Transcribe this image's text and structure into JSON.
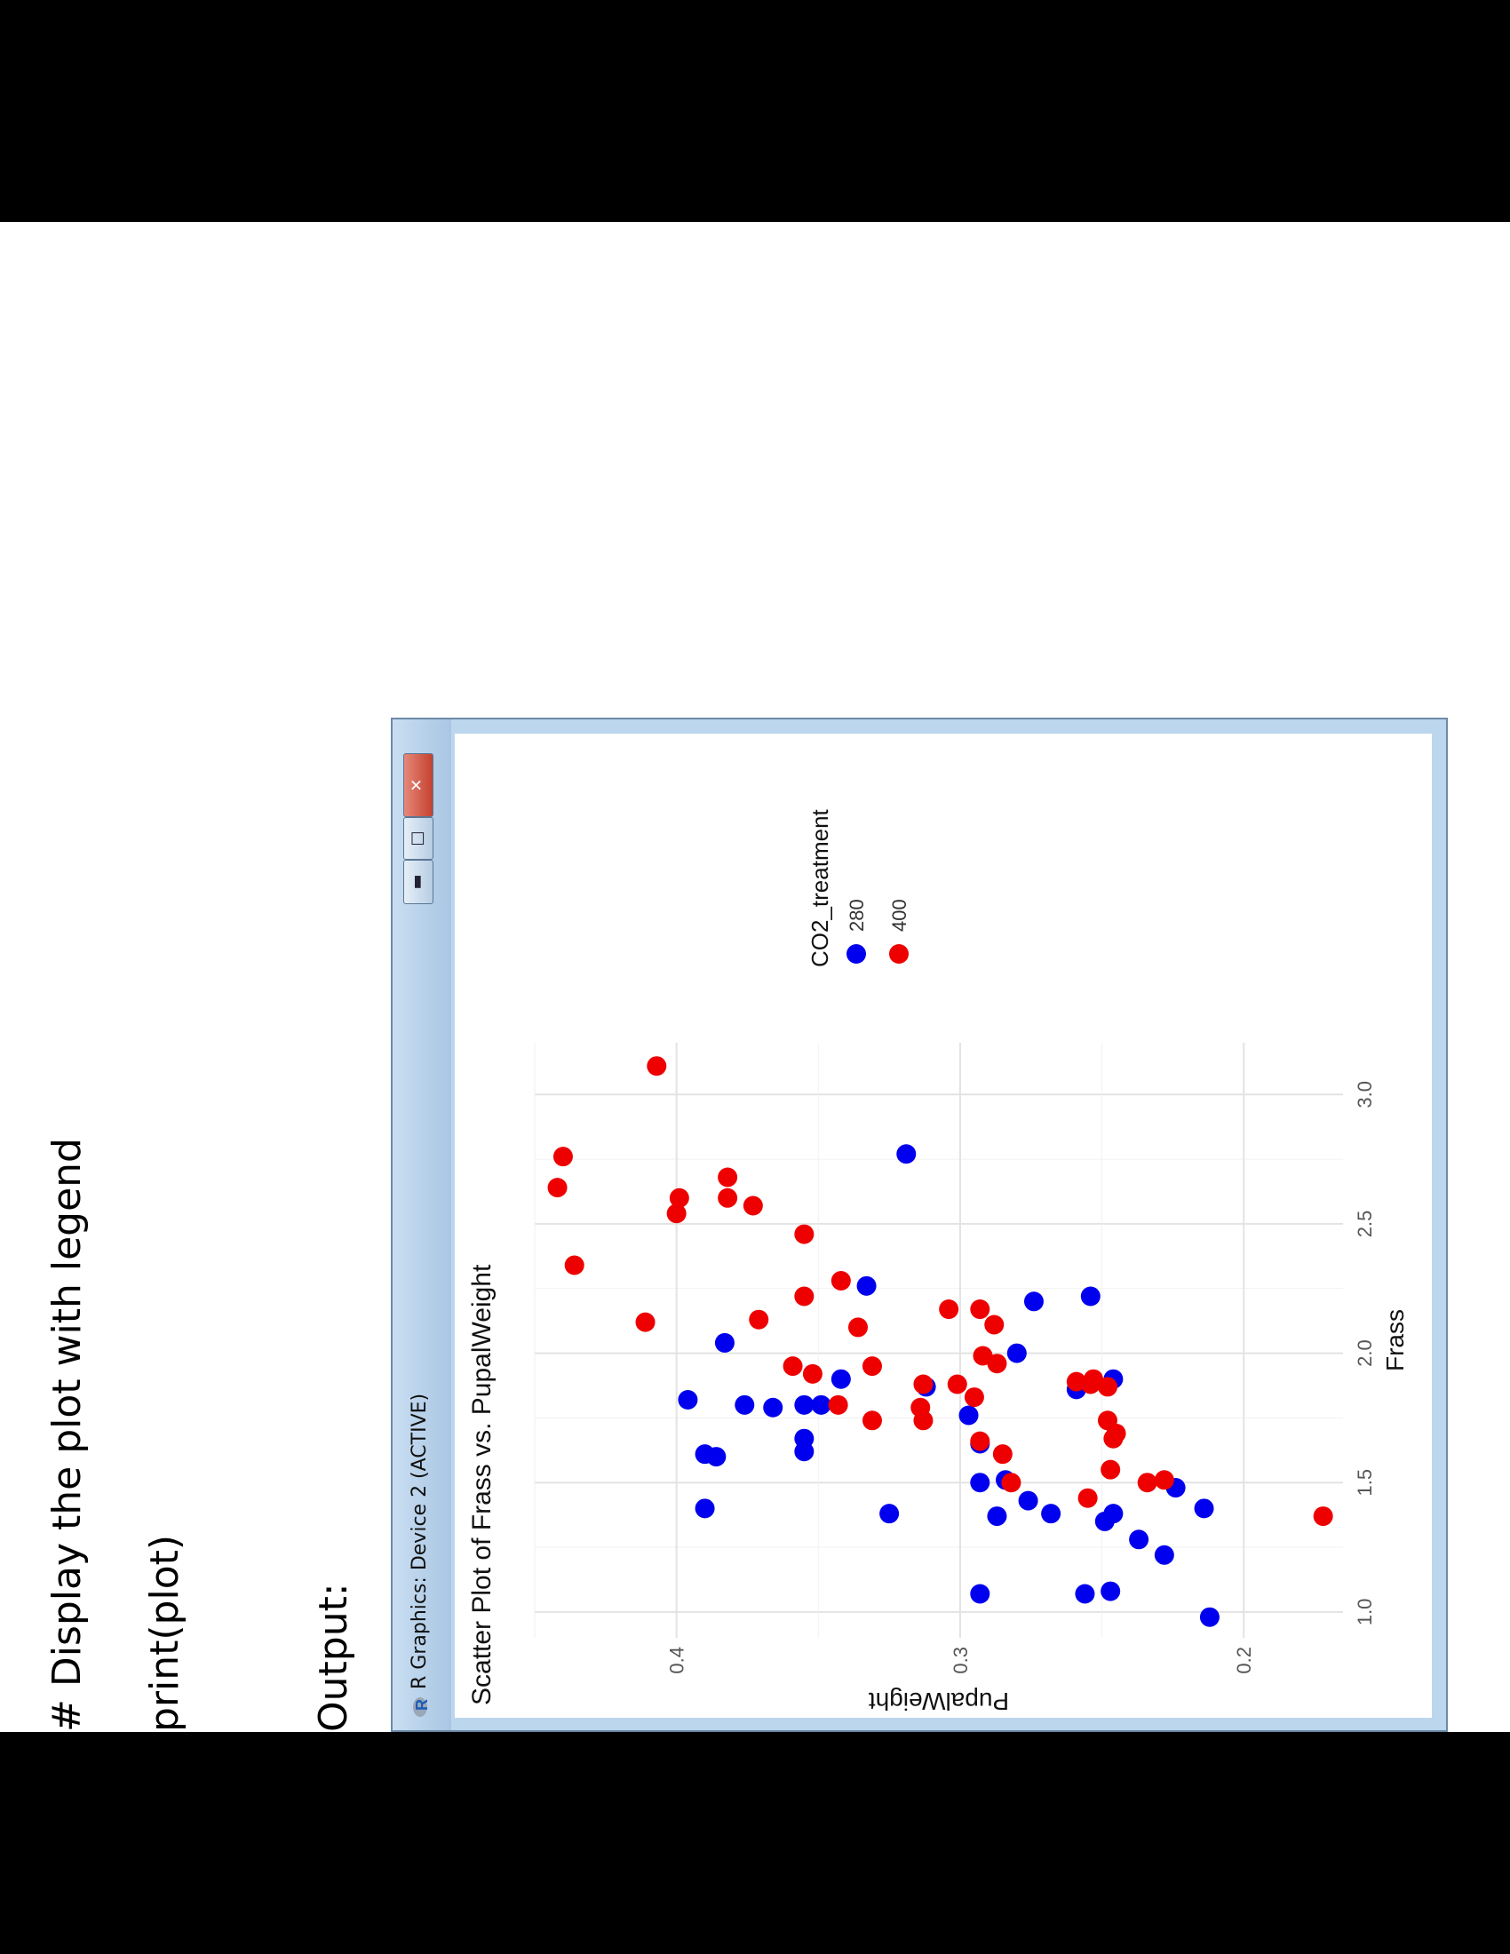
{
  "slide": {
    "code_comment": "# Display the plot with legend",
    "code_print": "print(plot)",
    "output_label": "Output:"
  },
  "window": {
    "title": "R Graphics: Device 2 (ACTIVE)",
    "minimize_icon": "minimize-icon",
    "maximize_icon": "maximize-icon",
    "close_icon": "close-icon",
    "close_color": "#c94a38"
  },
  "chart_data": {
    "type": "scatter",
    "title": "Scatter Plot of Frass vs. PupalWeight",
    "xlabel": "Frass",
    "ylabel": "PupalWeight",
    "xlim": [
      0.9,
      3.2
    ],
    "ylim": [
      0.165,
      0.45
    ],
    "xticks": [
      "1.0",
      "1.5",
      "2.0",
      "2.5",
      "3.0"
    ],
    "yticks": [
      "0.2",
      "0.3",
      "0.4"
    ],
    "grid": true,
    "legend": {
      "title": "CO2_treatment",
      "placement": "right",
      "entries": [
        "280",
        "400"
      ]
    },
    "series": [
      {
        "name": "280",
        "color": "#0000ee",
        "points": [
          [
            0.98,
            0.212
          ],
          [
            1.07,
            0.293
          ],
          [
            1.07,
            0.256
          ],
          [
            1.08,
            0.247
          ],
          [
            1.22,
            0.228
          ],
          [
            1.28,
            0.237
          ],
          [
            1.35,
            0.249
          ],
          [
            1.37,
            0.287
          ],
          [
            1.38,
            0.325
          ],
          [
            1.38,
            0.268
          ],
          [
            1.38,
            0.246
          ],
          [
            1.4,
            0.39
          ],
          [
            1.4,
            0.214
          ],
          [
            1.43,
            0.276
          ],
          [
            1.48,
            0.224
          ],
          [
            1.5,
            0.293
          ],
          [
            1.51,
            0.284
          ],
          [
            1.6,
            0.386
          ],
          [
            1.61,
            0.39
          ],
          [
            1.62,
            0.355
          ],
          [
            1.65,
            0.293
          ],
          [
            1.67,
            0.355
          ],
          [
            1.76,
            0.297
          ],
          [
            1.79,
            0.366
          ],
          [
            1.8,
            0.376
          ],
          [
            1.8,
            0.355
          ],
          [
            1.8,
            0.349
          ],
          [
            1.82,
            0.396
          ],
          [
            1.86,
            0.259
          ],
          [
            1.87,
            0.312
          ],
          [
            1.9,
            0.342
          ],
          [
            1.9,
            0.246
          ],
          [
            2.0,
            0.28
          ],
          [
            2.04,
            0.383
          ],
          [
            2.2,
            0.274
          ],
          [
            2.22,
            0.254
          ],
          [
            2.26,
            0.333
          ],
          [
            2.77,
            0.319
          ]
        ]
      },
      {
        "name": "400",
        "color": "#ee0000",
        "points": [
          [
            1.37,
            0.172
          ],
          [
            1.44,
            0.255
          ],
          [
            1.5,
            0.282
          ],
          [
            1.5,
            0.234
          ],
          [
            1.51,
            0.228
          ],
          [
            1.55,
            0.247
          ],
          [
            1.61,
            0.285
          ],
          [
            1.66,
            0.293
          ],
          [
            1.67,
            0.246
          ],
          [
            1.69,
            0.245
          ],
          [
            1.74,
            0.248
          ],
          [
            1.74,
            0.313
          ],
          [
            1.74,
            0.331
          ],
          [
            1.79,
            0.314
          ],
          [
            1.8,
            0.343
          ],
          [
            1.83,
            0.295
          ],
          [
            1.87,
            0.248
          ],
          [
            1.88,
            0.313
          ],
          [
            1.88,
            0.301
          ],
          [
            1.88,
            0.254
          ],
          [
            1.89,
            0.259
          ],
          [
            1.9,
            0.253
          ],
          [
            1.92,
            0.352
          ],
          [
            1.95,
            0.331
          ],
          [
            1.95,
            0.359
          ],
          [
            1.96,
            0.287
          ],
          [
            1.99,
            0.292
          ],
          [
            2.1,
            0.336
          ],
          [
            2.11,
            0.288
          ],
          [
            2.12,
            0.411
          ],
          [
            2.13,
            0.371
          ],
          [
            2.17,
            0.304
          ],
          [
            2.17,
            0.293
          ],
          [
            2.22,
            0.355
          ],
          [
            2.28,
            0.342
          ],
          [
            2.46,
            0.355
          ],
          [
            2.54,
            0.4
          ],
          [
            2.57,
            0.373
          ],
          [
            2.6,
            0.382
          ],
          [
            2.6,
            0.399
          ],
          [
            2.68,
            0.382
          ],
          [
            2.34,
            0.436
          ],
          [
            2.64,
            0.442
          ],
          [
            2.76,
            0.44
          ],
          [
            3.11,
            0.407
          ]
        ]
      }
    ]
  }
}
